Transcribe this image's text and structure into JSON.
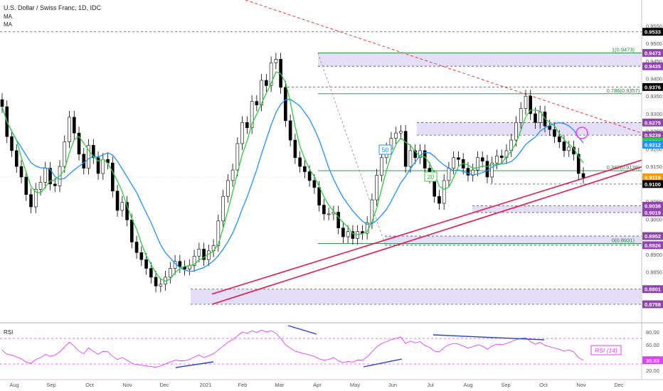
{
  "header": {
    "title": "U.S. Dollar / Swiss Franc, 1D, IDC",
    "ma_labels": [
      "MA",
      "MA"
    ]
  },
  "colors": {
    "bull": "#000000",
    "bear": "#000000",
    "ma20": "#2ecc40",
    "ma50": "#1e90ff",
    "rsi": "#e040fb",
    "trend_red": "#e8174a",
    "resistance_dash": "#e53935",
    "zone": "#d8d0f7",
    "fib": "#1b8a3a",
    "axis_badge_purple": "#8e44ad",
    "axis_badge_black": "#000000",
    "axis_badge_green": "#2ecc40",
    "axis_badge_blue": "#1e90ff",
    "axis_badge_orange": "#f39c12",
    "divergence": "#1f3fd6"
  },
  "chart_data": [
    {
      "type": "candlestick",
      "title": "U.S. Dollar / Swiss Franc, 1D, IDC",
      "x_ticks": [
        "Aug",
        "Sep",
        "Oct",
        "Nov",
        "Dec",
        "2021",
        "Feb",
        "Mar",
        "Apr",
        "May",
        "Jun",
        "Jul",
        "Aug",
        "Sep",
        "Oct",
        "Nov",
        "Dec"
      ],
      "y_ticks": [
        0.955,
        0.95,
        0.945,
        0.94,
        0.935,
        0.93,
        0.925,
        0.92,
        0.915,
        0.91,
        0.905,
        0.9,
        0.895,
        0.89,
        0.885,
        0.88
      ],
      "ylim": [
        0.8758,
        0.9583
      ],
      "price_badges": [
        {
          "value": "0.9533",
          "kind": "black"
        },
        {
          "value": "0.9473",
          "kind": "purple"
        },
        {
          "value": "0.9435",
          "kind": "purple"
        },
        {
          "value": "0.9376",
          "kind": "black"
        },
        {
          "value": "0.9275",
          "kind": "purple"
        },
        {
          "value": "0.9239",
          "kind": "purple"
        },
        {
          "value": "0.9220",
          "kind": "green"
        },
        {
          "value": "0.9212",
          "kind": "blue"
        },
        {
          "value": "0.9119",
          "kind": "orange"
        },
        {
          "value": "0.9100",
          "kind": "black"
        },
        {
          "value": "0.9038",
          "kind": "purple"
        },
        {
          "value": "0.9019",
          "kind": "purple"
        },
        {
          "value": "0.8952",
          "kind": "purple"
        },
        {
          "value": "0.8926",
          "kind": "purple"
        },
        {
          "value": "0.8801",
          "kind": "purple"
        },
        {
          "value": "0.8758",
          "kind": "purple"
        }
      ],
      "fib_labels": [
        {
          "text": "1(0.9473)",
          "value": 0.9473
        },
        {
          "text": "0.786(0.9357)",
          "value": 0.9357
        },
        {
          "text": "0.382(0.9138)",
          "value": 0.9138
        },
        {
          "text": "0(0.8931)",
          "value": 0.8931
        }
      ],
      "zones": [
        {
          "from": 0.9435,
          "to": 0.9473
        },
        {
          "from": 0.9239,
          "to": 0.9275
        },
        {
          "from": 0.9019,
          "to": 0.9038
        },
        {
          "from": 0.8926,
          "to": 0.8952
        },
        {
          "from": 0.8758,
          "to": 0.8801
        }
      ],
      "ma_tags": [
        {
          "text": "50"
        },
        {
          "text": "20"
        }
      ],
      "close": [
        0.932,
        0.9235,
        0.9195,
        0.915,
        0.912,
        0.907,
        0.9035,
        0.9085,
        0.9105,
        0.9145,
        0.91,
        0.9095,
        0.915,
        0.922,
        0.929,
        0.9245,
        0.9185,
        0.9145,
        0.921,
        0.9175,
        0.913,
        0.917,
        0.916,
        0.908,
        0.9025,
        0.9048,
        0.8998,
        0.8935,
        0.8905,
        0.8885,
        0.886,
        0.8835,
        0.881,
        0.8815,
        0.8835,
        0.886,
        0.888,
        0.8865,
        0.8858,
        0.8868,
        0.8895,
        0.8915,
        0.8885,
        0.891,
        0.8925,
        0.8995,
        0.9065,
        0.911,
        0.914,
        0.9215,
        0.9275,
        0.926,
        0.9335,
        0.9325,
        0.9395,
        0.938,
        0.9445,
        0.9455,
        0.9375,
        0.928,
        0.9225,
        0.9175,
        0.915,
        0.9135,
        0.911,
        0.909,
        0.904,
        0.9015,
        0.9015,
        0.902,
        0.8975,
        0.895,
        0.8965,
        0.8945,
        0.8965,
        0.896,
        0.899,
        0.9055,
        0.9125,
        0.9175,
        0.92,
        0.923,
        0.9245,
        0.925,
        0.915,
        0.9195,
        0.9175,
        0.9195,
        0.9145,
        0.912,
        0.9065,
        0.9045,
        0.911,
        0.9145,
        0.9175,
        0.917,
        0.9145,
        0.9125,
        0.914,
        0.9175,
        0.9165,
        0.912,
        0.916,
        0.918,
        0.9175,
        0.9195,
        0.9225,
        0.9275,
        0.9315,
        0.935,
        0.93,
        0.9275,
        0.9305,
        0.9265,
        0.9255,
        0.9235,
        0.922,
        0.9195,
        0.9205,
        0.9185,
        0.913,
        0.9119
      ]
    },
    {
      "type": "line",
      "title": "RSI",
      "series_name": "RSI (14)",
      "last_value": "35.83",
      "y_ticks": [
        80,
        60,
        40,
        20
      ],
      "ylim": [
        10,
        90
      ],
      "overbought": 70,
      "oversold": 30,
      "values": [
        52,
        45,
        44,
        41,
        38,
        33,
        31,
        37,
        40,
        45,
        42,
        44,
        49,
        57,
        64,
        58,
        50,
        46,
        55,
        50,
        45,
        50,
        49,
        42,
        37,
        40,
        36,
        31,
        29,
        28,
        27,
        26,
        25,
        27,
        30,
        33,
        36,
        35,
        35,
        37,
        41,
        44,
        40,
        43,
        46,
        52,
        58,
        64,
        68,
        74,
        80,
        78,
        82,
        79,
        83,
        80,
        82,
        78,
        70,
        60,
        55,
        50,
        48,
        46,
        44,
        42,
        38,
        36,
        37,
        40,
        35,
        32,
        34,
        33,
        36,
        36,
        41,
        49,
        57,
        62,
        65,
        68,
        70,
        72,
        62,
        66,
        63,
        65,
        59,
        56,
        50,
        49,
        56,
        60,
        62,
        61,
        58,
        55,
        57,
        60,
        58,
        53,
        58,
        61,
        60,
        62,
        65,
        68,
        70,
        71,
        65,
        61,
        64,
        59,
        57,
        55,
        53,
        50,
        52,
        49,
        40,
        36
      ]
    }
  ],
  "xaxis_labels": [
    "Aug",
    "Sep",
    "Oct",
    "Nov",
    "Dec",
    "2021",
    "Feb",
    "Mar",
    "Apr",
    "May",
    "Jun",
    "Jul",
    "Aug",
    "Sep",
    "Oct",
    "Nov",
    "Dec"
  ]
}
